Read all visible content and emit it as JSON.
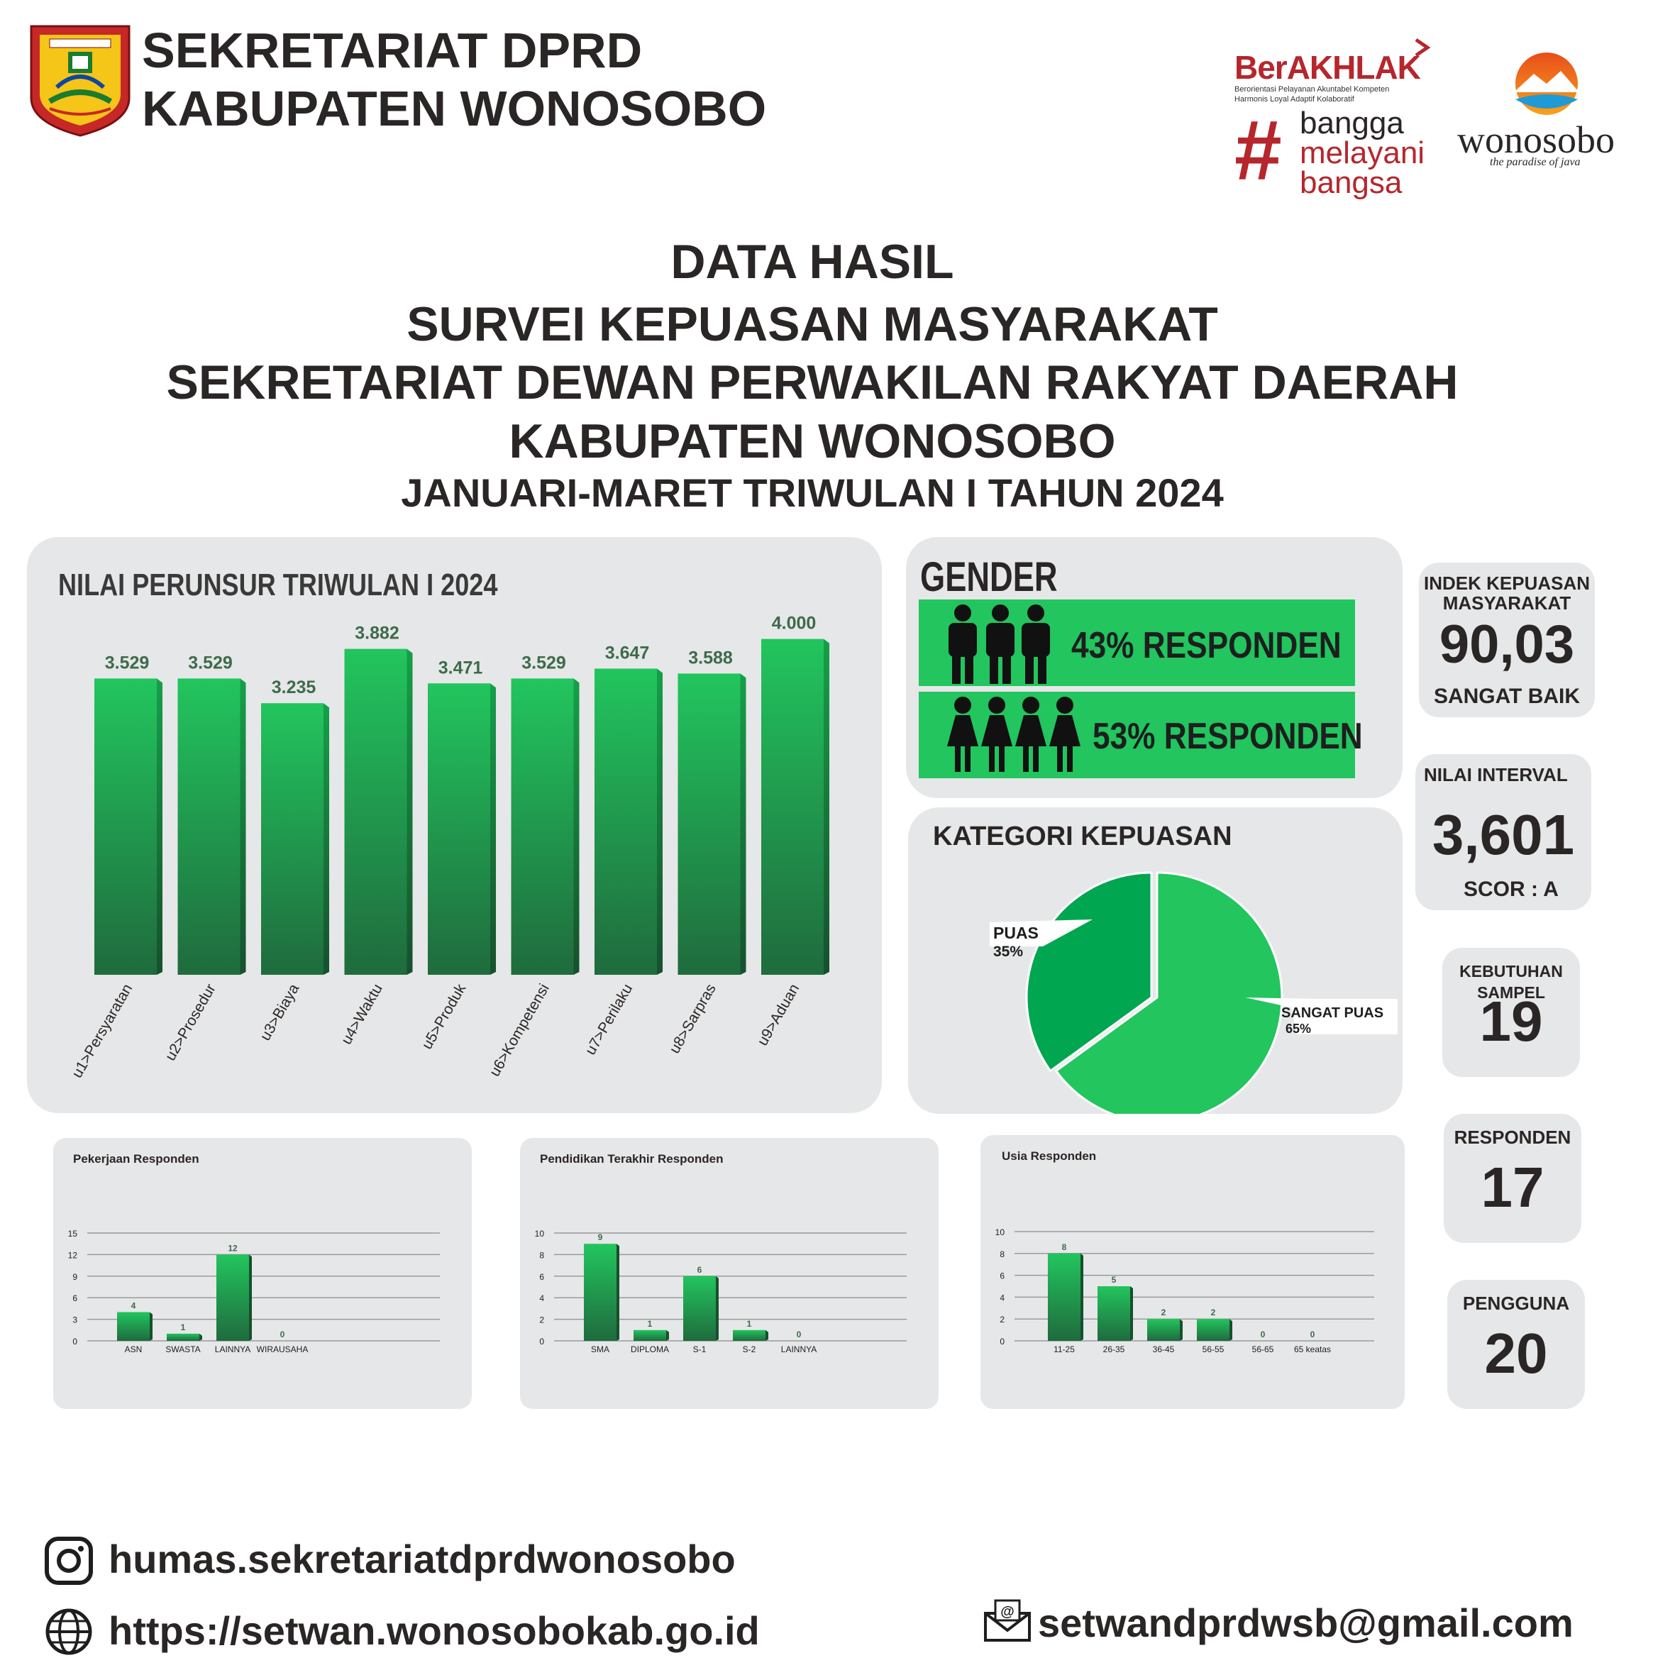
{
  "header": {
    "org_line1": "SEKRETARIAT DPRD",
    "org_line2": "KABUPATEN WONOSOBO",
    "berakhlak": "BerAKHLAK",
    "berakhlak_tagline1": "Berorientasi Pelayanan Akuntabel Kompeten",
    "berakhlak_tagline2": "Harmonis Loyal Adaptif Kolaboratif",
    "hashtag_line1": "bangga",
    "hashtag_line2": "melayani",
    "hashtag_line3": "bangsa",
    "wonosobo_brand": "wonosobo",
    "wonosobo_tagline": "the paradise of java"
  },
  "title": {
    "line1": "DATA HASIL",
    "line2": "SURVEI KEPUASAN MASYARAKAT",
    "line3": "SEKRETARIAT DEWAN PERWAKILAN RAKYAT DAERAH",
    "line4": "KABUPATEN WONOSOBO",
    "line5": "JANUARI-MARET TRIWULAN I TAHUN 2024"
  },
  "gender": {
    "title": "GENDER",
    "male_label": "43% RESPONDEN",
    "female_label": "53% RESPONDEN"
  },
  "stats": {
    "ikm_title1": "INDEK KEPUASAN",
    "ikm_title2": "MASYARAKAT",
    "ikm_value": "90,03",
    "ikm_sub": "SANGAT BAIK",
    "interval_title": "NILAI INTERVAL",
    "interval_value": "3,601",
    "interval_sub": "SCOR : A",
    "sampel_title": "KEBUTUHAN SAMPEL",
    "sampel_value": "19",
    "responden_title": "RESPONDEN",
    "responden_value": "17",
    "pengguna_title": "PENGGUNA",
    "pengguna_value": "20"
  },
  "footer": {
    "instagram": "humas.sekretariatdprdwonosobo",
    "website": "https://setwan.wonosobokab.go.id",
    "email": "setwandprdwsb@gmail.com"
  },
  "colors": {
    "bar_top": "#22c55e",
    "bar_bottom": "#1f6b3d",
    "panel": "#e6e7e8",
    "text_dark": "#2b2626",
    "brand_red": "#b5272d"
  },
  "chart_data": [
    {
      "id": "unsur",
      "type": "bar",
      "title": "NILAI PERUNSUR TRIWULAN I 2024",
      "categories": [
        "u1>Persyaratan",
        "u2>Prosedur",
        "u3>Biaya",
        "u4>Waktu",
        "u5>Produk",
        "u6>Kompetensi",
        "u7>Perilaku",
        "u8>Sarpras",
        "u9>Aduan"
      ],
      "values": [
        3.529,
        3.529,
        3.235,
        3.882,
        3.471,
        3.529,
        3.647,
        3.588,
        4.0
      ],
      "data_labels": [
        "3.529",
        "3.529",
        "3.235",
        "3.882",
        "3.471",
        "3.529",
        "3.647",
        "3.588",
        "4.000"
      ],
      "ylim": [
        0,
        4.2
      ]
    },
    {
      "id": "kategori",
      "type": "pie",
      "title": "KATEGORI KEPUASAN",
      "labels": [
        "PUAS",
        "SANGAT PUAS"
      ],
      "values": [
        35,
        65
      ],
      "value_labels": [
        "35%",
        "65%"
      ]
    },
    {
      "id": "pekerjaan",
      "type": "bar",
      "title": "Pekerjaan Responden",
      "categories": [
        "ASN",
        "SWASTA",
        "LAINNYA",
        "WIRAUSAHA"
      ],
      "values": [
        4,
        1,
        12,
        0
      ],
      "ylim": [
        0,
        15
      ],
      "yticks": [
        0,
        3,
        6,
        9,
        12,
        15
      ],
      "grid": true
    },
    {
      "id": "pendidikan",
      "type": "bar",
      "title": "Pendidikan Terakhir Responden",
      "categories": [
        "SMA",
        "DIPLOMA",
        "S-1",
        "S-2",
        "LAINNYA"
      ],
      "values": [
        9,
        1,
        6,
        1,
        0
      ],
      "ylim": [
        0,
        10
      ],
      "yticks": [
        0,
        2,
        4,
        6,
        8,
        10
      ],
      "grid": true
    },
    {
      "id": "usia",
      "type": "bar",
      "title": "Usia Responden",
      "categories": [
        "11-25",
        "26-35",
        "36-45",
        "56-55",
        "56-65",
        "65 keatas"
      ],
      "values": [
        8,
        5,
        2,
        2,
        0,
        0
      ],
      "ylim": [
        0,
        10
      ],
      "yticks": [
        0,
        2,
        4,
        6,
        8,
        10
      ],
      "grid": true
    }
  ]
}
